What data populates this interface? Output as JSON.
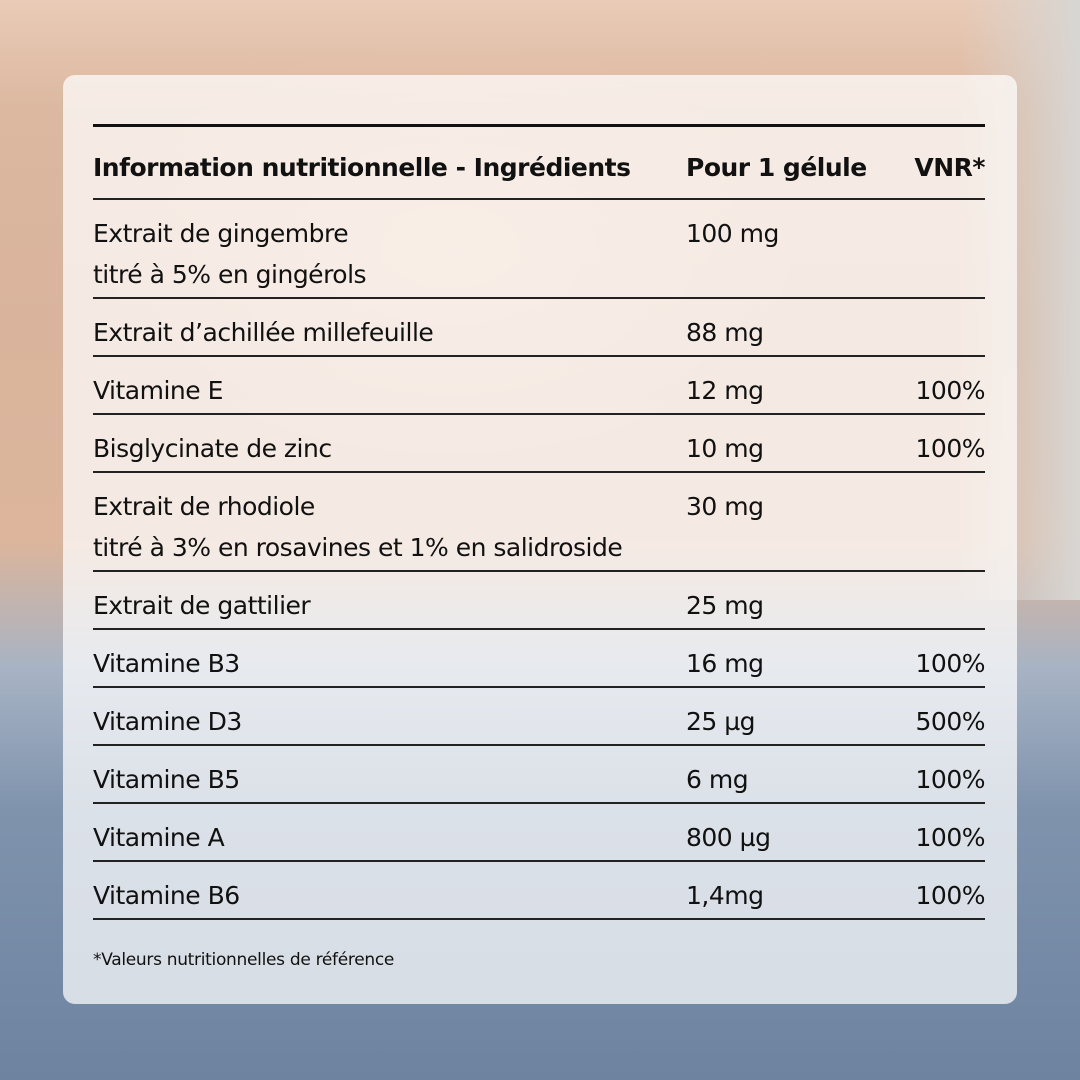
{
  "table": {
    "headers": [
      "Information nutritionnelle - Ingrédients",
      "Pour 1 gélule",
      "VNR*"
    ],
    "rows": [
      {
        "name": "Extrait de gingembre",
        "sub": "titré à 5% en gingérols",
        "amount": "100 mg",
        "vnr": ""
      },
      {
        "name": "Extrait d’achillée millefeuille",
        "sub": "",
        "amount": "88 mg",
        "vnr": ""
      },
      {
        "name": "Vitamine E",
        "sub": "",
        "amount": "12 mg",
        "vnr": "100%"
      },
      {
        "name": "Bisglycinate de zinc",
        "sub": "",
        "amount": "10 mg",
        "vnr": "100%"
      },
      {
        "name": "Extrait de rhodiole",
        "sub": "titré à 3% en rosavines et 1% en salidroside",
        "amount": "30 mg",
        "vnr": ""
      },
      {
        "name": "Extrait de gattilier",
        "sub": "",
        "amount": "25 mg",
        "vnr": ""
      },
      {
        "name": "Vitamine B3",
        "sub": "",
        "amount": "16 mg",
        "vnr": "100%"
      },
      {
        "name": "Vitamine D3",
        "sub": "",
        "amount": "25 µg",
        "vnr": "500%"
      },
      {
        "name": "Vitamine B5",
        "sub": "",
        "amount": "6 mg",
        "vnr": "100%"
      },
      {
        "name": "Vitamine A",
        "sub": "",
        "amount": "800 µg",
        "vnr": "100%"
      },
      {
        "name": "Vitamine B6",
        "sub": "",
        "amount": "1,4mg",
        "vnr": "100%"
      }
    ]
  },
  "footnote": "*Valeurs nutritionnelles de référence"
}
